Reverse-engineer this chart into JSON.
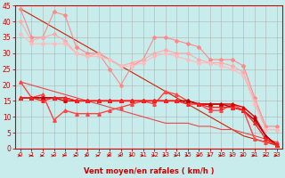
{
  "xlabel": "Vent moyen/en rafales ( km/h )",
  "bg_color": "#c8ecec",
  "grid_color": "#aaaaaa",
  "x": [
    0,
    1,
    2,
    3,
    4,
    5,
    6,
    7,
    8,
    9,
    10,
    11,
    12,
    13,
    14,
    15,
    16,
    17,
    18,
    19,
    20,
    21,
    22,
    23
  ],
  "series": [
    {
      "color": "#ff8888",
      "linewidth": 0.8,
      "marker": "D",
      "markersize": 2.0,
      "values": [
        44,
        35,
        35,
        43,
        42,
        32,
        30,
        30,
        25,
        20,
        26,
        28,
        35,
        35,
        34,
        33,
        32,
        28,
        28,
        28,
        26,
        16,
        7,
        7
      ]
    },
    {
      "color": "#ffaaaa",
      "linewidth": 0.8,
      "marker": "D",
      "markersize": 2.0,
      "values": [
        40,
        34,
        35,
        36,
        34,
        30,
        29,
        30,
        28,
        26,
        27,
        28,
        30,
        31,
        30,
        30,
        28,
        27,
        27,
        26,
        24,
        15,
        6,
        6
      ]
    },
    {
      "color": "#ffbbbb",
      "linewidth": 0.8,
      "marker": "D",
      "markersize": 2.0,
      "values": [
        36,
        33,
        33,
        33,
        33,
        30,
        29,
        29,
        28,
        26,
        26,
        27,
        29,
        30,
        29,
        28,
        27,
        27,
        26,
        25,
        23,
        14,
        6,
        6
      ]
    },
    {
      "color": "#ff4444",
      "linewidth": 1.0,
      "marker": "^",
      "markersize": 2.5,
      "values": [
        21,
        16,
        17,
        9,
        12,
        11,
        11,
        11,
        12,
        13,
        14,
        15,
        14,
        18,
        17,
        15,
        14,
        12,
        12,
        14,
        12,
        3,
        2,
        2
      ]
    },
    {
      "color": "#dd0000",
      "linewidth": 1.0,
      "marker": "^",
      "markersize": 2.5,
      "values": [
        16,
        16,
        16,
        16,
        15,
        15,
        15,
        15,
        15,
        15,
        15,
        15,
        15,
        15,
        15,
        15,
        14,
        14,
        14,
        14,
        13,
        10,
        4,
        1
      ]
    },
    {
      "color": "#bb0000",
      "linewidth": 1.0,
      "marker": "^",
      "markersize": 2.5,
      "values": [
        16,
        16,
        16,
        16,
        16,
        15,
        15,
        15,
        15,
        15,
        15,
        15,
        15,
        15,
        15,
        15,
        14,
        14,
        14,
        13,
        12,
        9,
        4,
        1
      ]
    },
    {
      "color": "#ff2222",
      "linewidth": 1.0,
      "marker": "^",
      "markersize": 2.5,
      "values": [
        16,
        16,
        15,
        16,
        16,
        15,
        15,
        15,
        15,
        15,
        15,
        15,
        15,
        15,
        15,
        14,
        14,
        13,
        13,
        13,
        12,
        8,
        3,
        1
      ]
    },
    {
      "color": "#cc2200",
      "linewidth": 0.8,
      "marker": null,
      "values": [
        44,
        42,
        40,
        38,
        36,
        34,
        32,
        30,
        28,
        26,
        24,
        22,
        20,
        18,
        16,
        14,
        12,
        10,
        8,
        6,
        4,
        3,
        2,
        1
      ]
    },
    {
      "color": "#ee4444",
      "linewidth": 0.8,
      "marker": null,
      "values": [
        21,
        20,
        19,
        18,
        17,
        16,
        15,
        14,
        13,
        12,
        11,
        10,
        9,
        8,
        8,
        8,
        7,
        7,
        6,
        6,
        5,
        4,
        3,
        2
      ]
    }
  ],
  "ylim": [
    0,
    45
  ],
  "yticks": [
    0,
    5,
    10,
    15,
    20,
    25,
    30,
    35,
    40,
    45
  ],
  "arrow_color": "#cc0000"
}
